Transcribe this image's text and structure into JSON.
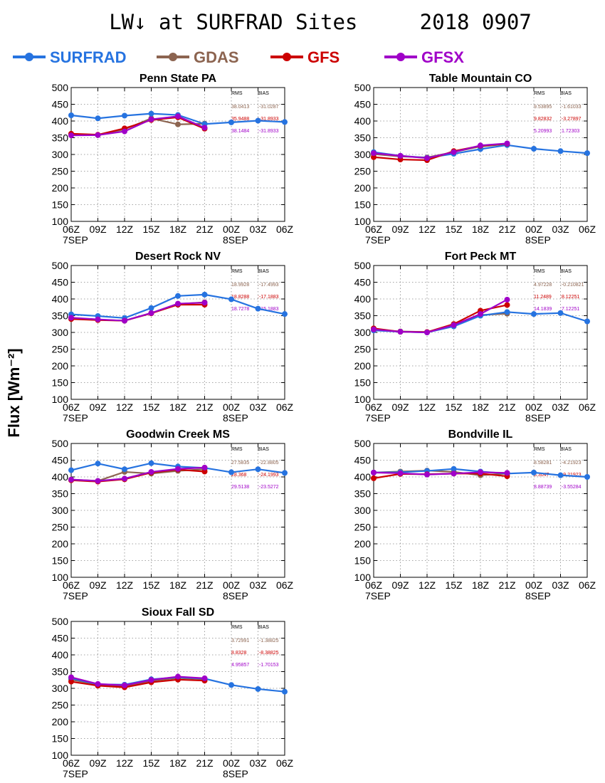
{
  "title": "LW↓ at SURFRAD Sites     2018 0907",
  "ylabel": "Flux [Wm⁻²]",
  "legend": [
    {
      "name": "SURFRAD",
      "color": "#2673e0"
    },
    {
      "name": "GDAS",
      "color": "#8c6450"
    },
    {
      "name": "GFS",
      "color": "#cc0000"
    },
    {
      "name": "GFSX",
      "color": "#a000c8"
    }
  ],
  "stats_header": {
    "rms": "RMS",
    "bias": "BIAS"
  },
  "chart_data": [
    {
      "type": "line",
      "title": "Penn State PA",
      "x": [
        "06Z",
        "09Z",
        "12Z",
        "15Z",
        "18Z",
        "21Z",
        "00Z",
        "03Z",
        "06Z"
      ],
      "date_labels": [
        "7SEP",
        "8SEP"
      ],
      "ylim": [
        100,
        500
      ],
      "yticks": [
        100,
        150,
        200,
        250,
        300,
        350,
        400,
        450,
        500
      ],
      "grid": true,
      "series": [
        {
          "name": "SURFRAD",
          "values": [
            417,
            408,
            416,
            422,
            418,
            391,
            396,
            401,
            397
          ]
        },
        {
          "name": "GDAS",
          "values": [
            360,
            358,
            375,
            408,
            390,
            392,
            null,
            null,
            null
          ]
        },
        {
          "name": "GFS",
          "values": [
            362,
            359,
            378,
            403,
            411,
            377,
            null,
            null,
            null
          ]
        },
        {
          "name": "GFSX",
          "values": [
            357,
            358,
            369,
            405,
            414,
            380,
            null,
            null,
            null
          ]
        }
      ],
      "stats": [
        {
          "rms": "38.0413",
          "bias": "-31.0287"
        },
        {
          "rms": "35.9488",
          "bias": "-31.8933"
        },
        {
          "rms": "38.1484",
          "bias": "-31.8933"
        }
      ]
    },
    {
      "type": "line",
      "title": "Table Mountain CO",
      "x": [
        "06Z",
        "09Z",
        "12Z",
        "15Z",
        "18Z",
        "21Z",
        "00Z",
        "03Z",
        "06Z"
      ],
      "date_labels": [
        "7SEP",
        "8SEP"
      ],
      "ylim": [
        100,
        500
      ],
      "yticks": [
        100,
        150,
        200,
        250,
        300,
        350,
        400,
        450,
        500
      ],
      "grid": true,
      "series": [
        {
          "name": "SURFRAD",
          "values": [
            307,
            296,
            290,
            302,
            316,
            328,
            317,
            310,
            304
          ]
        },
        {
          "name": "GDAS",
          "values": [
            301,
            294,
            291,
            307,
            324,
            331,
            null,
            null,
            null
          ]
        },
        {
          "name": "GFS",
          "values": [
            292,
            285,
            283,
            310,
            326,
            332,
            null,
            null,
            null
          ]
        },
        {
          "name": "GFSX",
          "values": [
            304,
            296,
            289,
            307,
            327,
            333,
            null,
            null,
            null
          ]
        }
      ],
      "stats": [
        {
          "rms": "9.53895",
          "bias": "-1.61033"
        },
        {
          "rms": "9.82832",
          "bias": "-3.27897"
        },
        {
          "rms": "5.20993",
          "bias": "1.72303"
        }
      ]
    },
    {
      "type": "line",
      "title": "Desert Rock NV",
      "x": [
        "06Z",
        "09Z",
        "12Z",
        "15Z",
        "18Z",
        "21Z",
        "00Z",
        "03Z",
        "06Z"
      ],
      "date_labels": [
        "7SEP",
        "8SEP"
      ],
      "ylim": [
        100,
        500
      ],
      "yticks": [
        100,
        150,
        200,
        250,
        300,
        350,
        400,
        450,
        500
      ],
      "grid": true,
      "series": [
        {
          "name": "SURFRAD",
          "values": [
            354,
            349,
            343,
            373,
            409,
            413,
            399,
            371,
            355
          ]
        },
        {
          "name": "GDAS",
          "values": [
            343,
            338,
            335,
            358,
            385,
            390,
            null,
            null,
            null
          ]
        },
        {
          "name": "GFS",
          "values": [
            340,
            337,
            335,
            357,
            383,
            383,
            null,
            null,
            null
          ]
        },
        {
          "name": "GFSX",
          "values": [
            344,
            339,
            335,
            358,
            386,
            389,
            null,
            null,
            null
          ]
        }
      ],
      "stats": [
        {
          "rms": "18.9928",
          "bias": "-17.4993"
        },
        {
          "rms": "18.8288",
          "bias": "-17.1883"
        },
        {
          "rms": "18.7278",
          "bias": "-15.1883"
        }
      ]
    },
    {
      "type": "line",
      "title": "Fort Peck MT",
      "x": [
        "06Z",
        "09Z",
        "12Z",
        "15Z",
        "18Z",
        "21Z",
        "00Z",
        "03Z",
        "06Z"
      ],
      "date_labels": [
        "7SEP",
        "8SEP"
      ],
      "ylim": [
        100,
        500
      ],
      "yticks": [
        100,
        150,
        200,
        250,
        300,
        350,
        400,
        450,
        500
      ],
      "grid": true,
      "series": [
        {
          "name": "SURFRAD",
          "values": [
            306,
            302,
            300,
            318,
            350,
            361,
            355,
            358,
            333
          ]
        },
        {
          "name": "GDAS",
          "values": [
            308,
            303,
            301,
            321,
            352,
            356,
            null,
            null,
            null
          ]
        },
        {
          "name": "GFS",
          "values": [
            312,
            302,
            301,
            325,
            365,
            382,
            null,
            null,
            null
          ]
        },
        {
          "name": "GFSX",
          "values": [
            309,
            302,
            300,
            322,
            355,
            398,
            null,
            null,
            null
          ]
        }
      ],
      "stats": [
        {
          "rms": "4.97228",
          "bias": "-0.210821"
        },
        {
          "rms": "11.2489",
          "bias": "8.12251"
        },
        {
          "rms": "14.1839",
          "bias": "7.12251"
        }
      ]
    },
    {
      "type": "line",
      "title": "Goodwin Creek MS",
      "x": [
        "06Z",
        "09Z",
        "12Z",
        "15Z",
        "18Z",
        "21Z",
        "00Z",
        "03Z",
        "06Z"
      ],
      "date_labels": [
        "7SEP",
        "8SEP"
      ],
      "ylim": [
        100,
        500
      ],
      "yticks": [
        100,
        150,
        200,
        250,
        300,
        350,
        400,
        450,
        500
      ],
      "grid": true,
      "series": [
        {
          "name": "SURFRAD",
          "values": [
            420,
            440,
            423,
            441,
            431,
            427,
            414,
            423,
            412
          ]
        },
        {
          "name": "GDAS",
          "values": [
            392,
            388,
            415,
            410,
            418,
            423,
            null,
            null,
            null
          ]
        },
        {
          "name": "GFS",
          "values": [
            390,
            386,
            393,
            413,
            422,
            416,
            null,
            null,
            null
          ]
        },
        {
          "name": "GFSX",
          "values": [
            392,
            388,
            395,
            415,
            424,
            428,
            null,
            null,
            null
          ]
        }
      ],
      "stats": [
        {
          "rms": "27.5835",
          "bias": "-22.8805"
        },
        {
          "rms": "28.368",
          "bias": "-24.1993"
        },
        {
          "rms": "29.5138",
          "bias": "-23.5272"
        }
      ]
    },
    {
      "type": "line",
      "title": "Bondville IL",
      "x": [
        "06Z",
        "09Z",
        "12Z",
        "15Z",
        "18Z",
        "21Z",
        "00Z",
        "03Z",
        "06Z"
      ],
      "date_labels": [
        "7SEP",
        "8SEP"
      ],
      "ylim": [
        100,
        500
      ],
      "yticks": [
        100,
        150,
        200,
        250,
        300,
        350,
        400,
        450,
        500
      ],
      "grid": true,
      "series": [
        {
          "name": "SURFRAD",
          "values": [
            413,
            414,
            418,
            424,
            416,
            410,
            413,
            405,
            400
          ]
        },
        {
          "name": "GDAS",
          "values": [
            413,
            416,
            419,
            415,
            405,
            410,
            null,
            null,
            null
          ]
        },
        {
          "name": "GFS",
          "values": [
            396,
            409,
            408,
            410,
            410,
            402,
            null,
            null,
            null
          ]
        },
        {
          "name": "GFSX",
          "values": [
            413,
            411,
            407,
            410,
            414,
            412,
            null,
            null,
            null
          ]
        }
      ],
      "stats": [
        {
          "rms": "8.58281",
          "bias": "-4.21923"
        },
        {
          "rms": "8.3047",
          "bias": "-9.21923"
        },
        {
          "rms": "8.88739",
          "bias": "-3.55284"
        }
      ]
    },
    {
      "type": "line",
      "title": "Sioux Fall SD",
      "x": [
        "06Z",
        "09Z",
        "12Z",
        "15Z",
        "18Z",
        "21Z",
        "00Z",
        "03Z",
        "06Z"
      ],
      "date_labels": [
        "7SEP",
        "8SEP"
      ],
      "ylim": [
        100,
        500
      ],
      "yticks": [
        100,
        150,
        200,
        250,
        300,
        350,
        400,
        450,
        500
      ],
      "grid": true,
      "series": [
        {
          "name": "SURFRAD",
          "values": [
            330,
            312,
            311,
            327,
            333,
            329,
            310,
            298,
            290
          ]
        },
        {
          "name": "GDAS",
          "values": [
            326,
            311,
            307,
            322,
            331,
            327,
            null,
            null,
            null
          ]
        },
        {
          "name": "GFS",
          "values": [
            320,
            308,
            303,
            318,
            326,
            323,
            null,
            null,
            null
          ]
        },
        {
          "name": "GFSX",
          "values": [
            333,
            313,
            309,
            325,
            335,
            330,
            null,
            null,
            null
          ]
        }
      ],
      "stats": [
        {
          "rms": "3.72991",
          "bias": "-1.38825"
        },
        {
          "rms": "8.8328",
          "bias": "-8.38825"
        },
        {
          "rms": "4.95857",
          "bias": "-1.70153"
        }
      ]
    }
  ]
}
